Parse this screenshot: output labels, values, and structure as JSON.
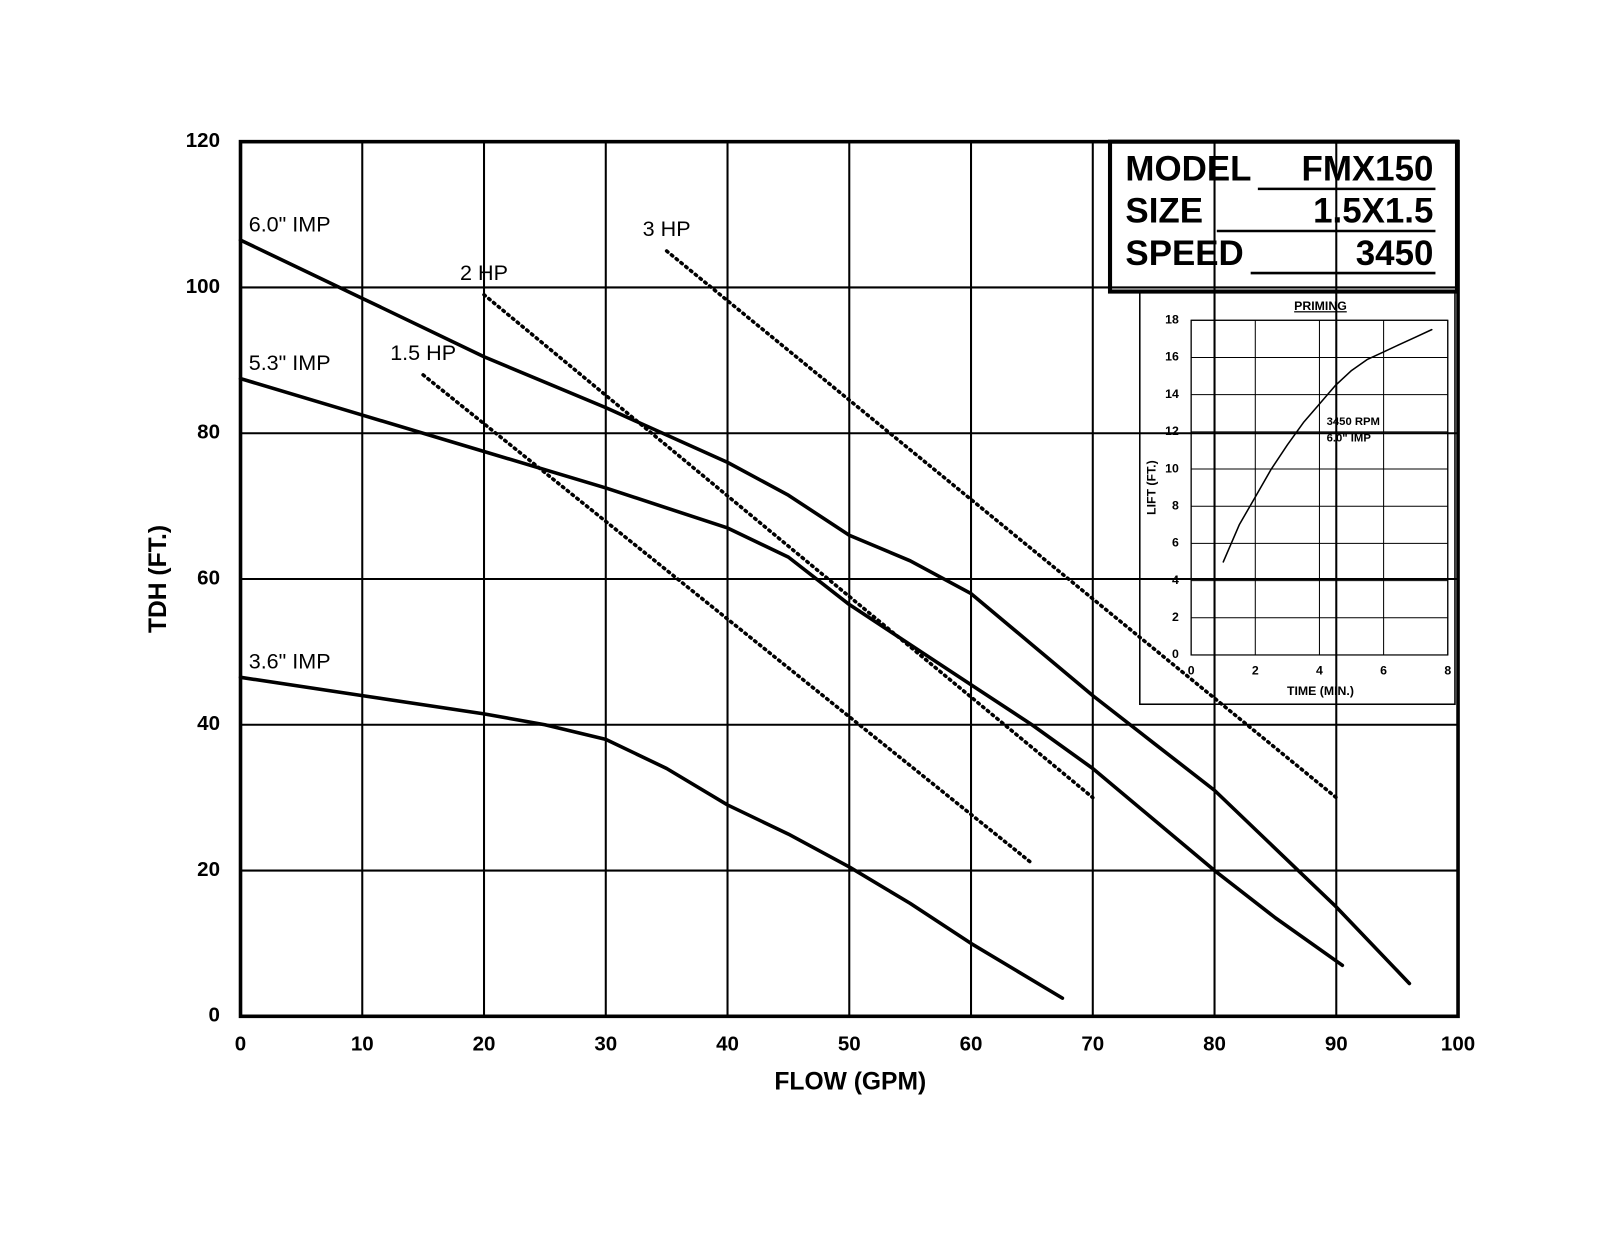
{
  "chart_data": [
    {
      "type": "line",
      "x_label": "FLOW (GPM)",
      "y_label": "TDH (FT.)",
      "xlim": [
        0,
        100
      ],
      "xticks": [
        0,
        10,
        20,
        30,
        40,
        50,
        60,
        70,
        80,
        90,
        100
      ],
      "ylim": [
        0,
        120
      ],
      "yticks": [
        0,
        20,
        40,
        60,
        80,
        100,
        120
      ],
      "grid": true,
      "series": [
        {
          "name": "6.0\" IMP",
          "color": "#000000",
          "dash": "solid",
          "x": [
            0,
            10,
            20,
            30,
            40,
            45,
            50,
            55,
            60,
            65,
            70,
            75,
            80,
            85,
            90,
            96
          ],
          "values": [
            106.5,
            98.5,
            90.5,
            83.5,
            76,
            71.5,
            66,
            62.5,
            58,
            51,
            44,
            37.5,
            31,
            23,
            15,
            4.5
          ]
        },
        {
          "name": "5.3\" IMP",
          "color": "#000000",
          "dash": "solid",
          "x": [
            0,
            10,
            20,
            30,
            40,
            45,
            50,
            55,
            60,
            65,
            70,
            75,
            80,
            85,
            90.5
          ],
          "values": [
            87.5,
            82.5,
            77.5,
            72.5,
            67,
            63,
            56.5,
            51,
            45.5,
            40,
            34,
            27,
            20,
            13.5,
            7
          ]
        },
        {
          "name": "3.6\" IMP",
          "color": "#000000",
          "dash": "solid",
          "x": [
            0,
            10,
            20,
            25,
            30,
            35,
            40,
            45,
            50,
            55,
            60,
            67.5
          ],
          "values": [
            46.5,
            44,
            41.5,
            40,
            38,
            34,
            29,
            25,
            20.5,
            15.5,
            10,
            2.5
          ]
        },
        {
          "name": "1.5 HP",
          "color": "#000000",
          "dash": "dotted",
          "x": [
            15,
            65
          ],
          "values": [
            88,
            21
          ]
        },
        {
          "name": "2 HP",
          "color": "#000000",
          "dash": "dotted",
          "x": [
            20,
            70
          ],
          "values": [
            99,
            30
          ]
        },
        {
          "name": "3 HP",
          "color": "#000000",
          "dash": "dotted",
          "x": [
            35,
            90
          ],
          "values": [
            105,
            30
          ]
        }
      ]
    },
    {
      "type": "line",
      "title": "PRIMING",
      "x_label": "TIME (MIN.)",
      "y_label": "LIFT (FT.)",
      "xlim": [
        0,
        8
      ],
      "xticks": [
        0,
        2,
        4,
        6,
        8
      ],
      "ylim": [
        0,
        18
      ],
      "yticks": [
        0,
        2,
        4,
        6,
        8,
        10,
        12,
        14,
        16,
        18
      ],
      "grid": true,
      "annotations": [
        "3450 RPM",
        "6.0\" IMP"
      ],
      "series": [
        {
          "color": "#000000",
          "dash": "solid",
          "x": [
            1,
            1.5,
            2,
            2.5,
            3,
            3.5,
            4,
            4.5,
            5,
            5.5,
            6,
            6.5,
            7,
            7.5
          ],
          "values": [
            5,
            7,
            8.5,
            10,
            11.3,
            12.5,
            13.5,
            14.5,
            15.3,
            15.9,
            16.3,
            16.7,
            17.1,
            17.5
          ]
        }
      ]
    }
  ],
  "model_box": {
    "rows": [
      {
        "label": "MODEL",
        "value": "FMX150"
      },
      {
        "label": "SIZE",
        "value": "1.5X1.5"
      },
      {
        "label": "SPEED",
        "value": "3450"
      }
    ]
  }
}
